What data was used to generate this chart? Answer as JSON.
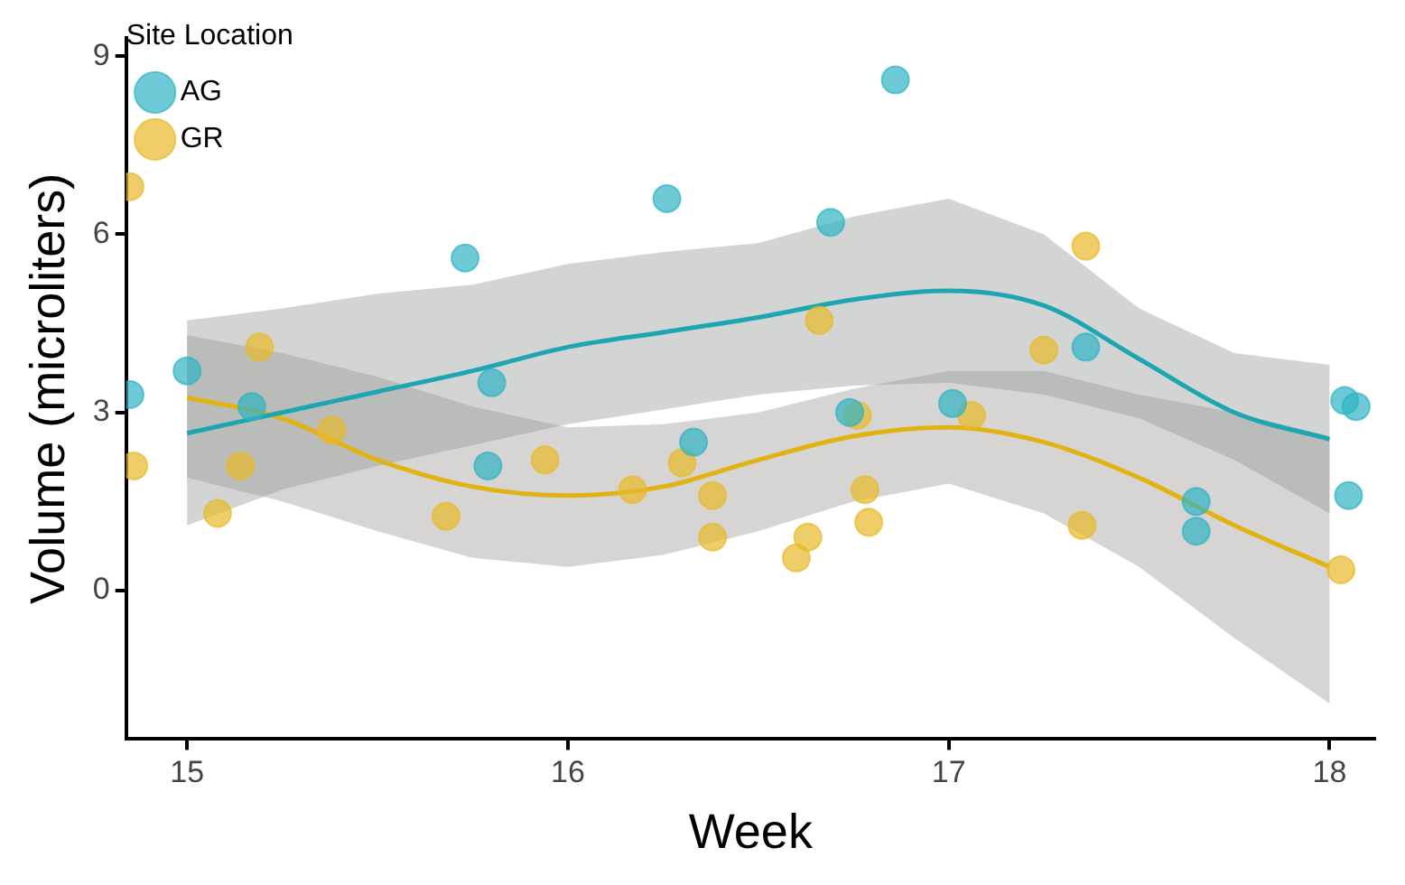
{
  "chart_data": {
    "type": "scatter",
    "xlabel": "Week",
    "ylabel": "Volume (microliters)",
    "legend_title": "Site Location",
    "legend": "top left",
    "grid": false,
    "xlim": [
      14.84,
      18.12
    ],
    "xticks": [
      15,
      16,
      17,
      18
    ],
    "ylim": [
      -2.5,
      9.3
    ],
    "yticks": [
      0,
      3,
      6,
      9
    ],
    "series": [
      {
        "name": "AG",
        "marker": "circle",
        "color": "#2fb4c4",
        "x": [
          14.85,
          15.0,
          15.17,
          15.73,
          15.8,
          15.79,
          16.26,
          16.33,
          16.69,
          16.74,
          16.86,
          17.01,
          17.36,
          17.65,
          17.65,
          18.04,
          18.07,
          18.05
        ],
        "values": [
          3.3,
          3.7,
          3.1,
          5.6,
          3.5,
          2.1,
          6.6,
          2.5,
          6.2,
          3.0,
          8.6,
          3.15,
          4.1,
          1.5,
          1.0,
          3.2,
          3.1,
          1.6
        ]
      },
      {
        "name": "GR",
        "marker": "circle",
        "color": "#e8b92a",
        "x": [
          14.85,
          14.86,
          15.08,
          15.19,
          15.14,
          15.38,
          15.68,
          15.94,
          16.17,
          16.3,
          16.38,
          16.38,
          16.63,
          16.6,
          16.66,
          16.76,
          16.78,
          16.79,
          17.06,
          17.25,
          17.36,
          17.35,
          18.03
        ],
        "values": [
          6.8,
          2.1,
          1.3,
          4.1,
          2.1,
          2.7,
          1.25,
          2.2,
          1.7,
          2.15,
          1.6,
          0.9,
          0.9,
          0.55,
          4.55,
          2.95,
          1.7,
          1.15,
          2.95,
          4.05,
          5.8,
          1.1,
          0.35
        ]
      },
      {
        "type": "line",
        "marker": "none",
        "color": "#1ea6b0",
        "x": [
          15,
          15.25,
          15.5,
          15.75,
          16,
          16.25,
          16.5,
          16.75,
          17,
          17.25,
          17.5,
          17.75,
          18
        ],
        "values": [
          2.65,
          3.0,
          3.35,
          3.7,
          4.1,
          4.35,
          4.6,
          4.9,
          5.05,
          4.8,
          3.9,
          3.0,
          2.55
        ],
        "lower": [
          1.1,
          1.7,
          2.1,
          2.45,
          2.8,
          3.05,
          3.3,
          3.45,
          3.5,
          3.3,
          2.9,
          2.2,
          1.3
        ],
        "upper": [
          4.55,
          4.75,
          5.0,
          5.15,
          5.5,
          5.7,
          5.85,
          6.3,
          6.6,
          6.0,
          4.75,
          4.0,
          3.8
        ]
      },
      {
        "type": "line",
        "marker": "none",
        "color": "#e2b213",
        "x": [
          15,
          15.25,
          15.5,
          15.75,
          16,
          16.25,
          16.5,
          16.75,
          17,
          17.25,
          17.5,
          17.75,
          18
        ],
        "values": [
          3.25,
          2.9,
          2.2,
          1.75,
          1.6,
          1.75,
          2.2,
          2.6,
          2.75,
          2.5,
          1.9,
          1.1,
          0.4
        ],
        "lower": [
          1.9,
          1.5,
          1.0,
          0.55,
          0.4,
          0.6,
          1.0,
          1.5,
          1.8,
          1.3,
          0.4,
          -0.8,
          -1.9
        ],
        "upper": [
          4.3,
          4.0,
          3.6,
          3.1,
          2.75,
          2.8,
          3.0,
          3.4,
          3.7,
          3.7,
          3.3,
          3.0,
          2.6
        ]
      }
    ]
  }
}
